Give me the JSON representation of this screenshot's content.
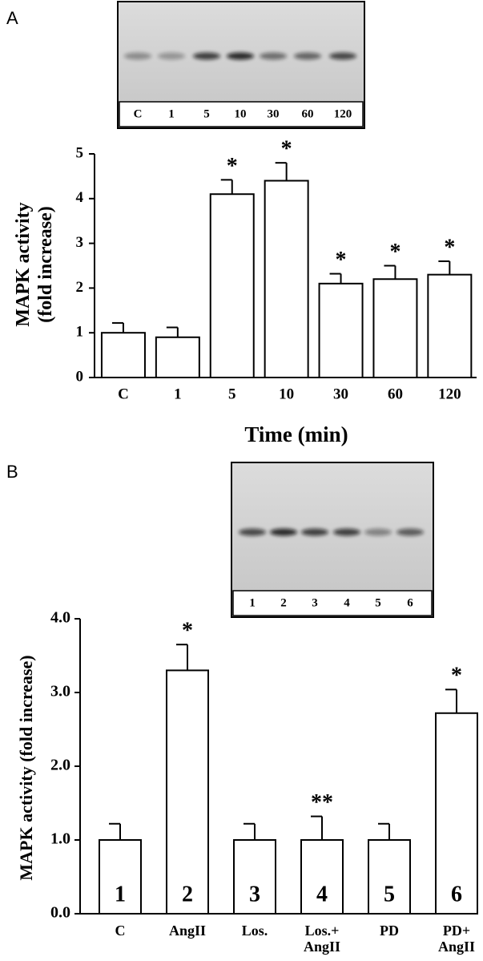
{
  "chart_data": [
    {
      "type": "bar",
      "panel": "A",
      "blot_lanes": [
        "C",
        "1",
        "5",
        "10",
        "30",
        "60",
        "120"
      ],
      "y_label": "MAPK activity\n(fold increase)",
      "x_label": "Time (min)",
      "categories": [
        "C",
        "1",
        "5",
        "10",
        "30",
        "60",
        "120"
      ],
      "values": [
        1.0,
        0.9,
        4.1,
        4.4,
        2.1,
        2.2,
        2.3
      ],
      "errors": [
        0.22,
        0.22,
        0.32,
        0.4,
        0.22,
        0.3,
        0.3
      ],
      "markers": [
        null,
        null,
        "*",
        "*",
        "*",
        "*",
        "*"
      ],
      "ylim": [
        0,
        5
      ],
      "yticks": [
        0,
        1,
        2,
        3,
        4,
        5
      ],
      "color": "#ffffff"
    },
    {
      "type": "bar",
      "panel": "B",
      "blot_lanes": [
        "1",
        "2",
        "3",
        "4",
        "5",
        "6"
      ],
      "y_label": "MAPK activity (fold increase)",
      "categories": [
        "C",
        "AngII",
        "Los.",
        "Los.+\nAngII",
        "PD",
        "PD+\nAngII"
      ],
      "bar_labels": [
        "1",
        "2",
        "3",
        "4",
        "5",
        "6"
      ],
      "values": [
        1.0,
        3.3,
        1.0,
        1.0,
        1.0,
        2.72
      ],
      "errors": [
        0.22,
        0.35,
        0.22,
        0.32,
        0.22,
        0.32
      ],
      "markers": [
        null,
        "*",
        null,
        "**",
        null,
        "*"
      ],
      "ylim": [
        0,
        4
      ],
      "yticks": [
        {
          "value": 0,
          "label": "0.0"
        },
        {
          "value": 1,
          "label": "1.0"
        },
        {
          "value": 2,
          "label": "2.0"
        },
        {
          "value": 3,
          "label": "3.0"
        },
        {
          "value": 4,
          "label": "4.0"
        }
      ],
      "color": "#ffffff"
    }
  ]
}
